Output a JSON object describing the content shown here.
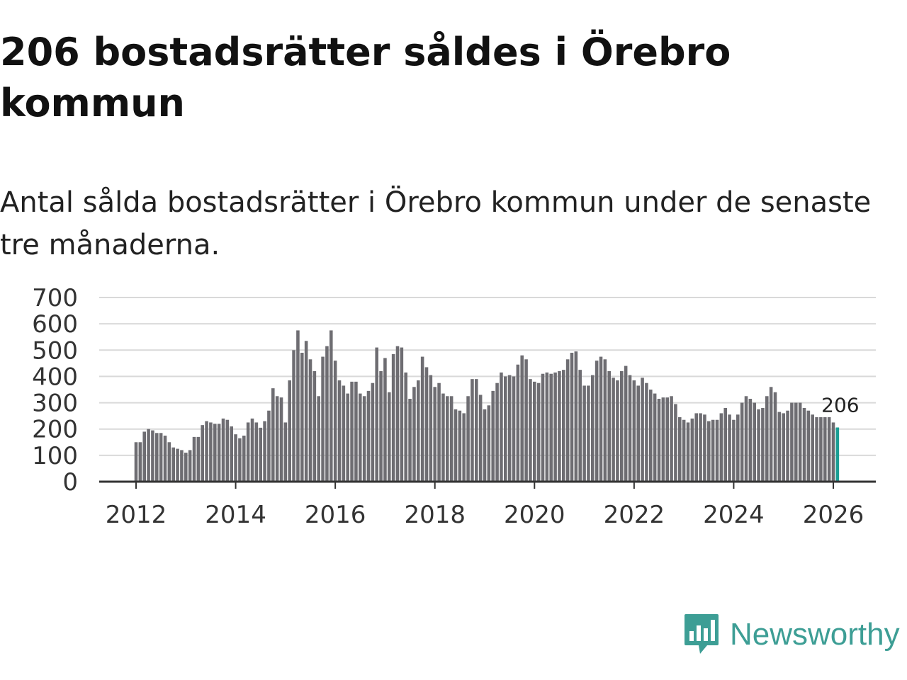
{
  "title": "206 bostadsrätter såldes i Örebro kommun",
  "subtitle": "Antal sålda bostadsrätter i Örebro kommun under de senaste tre månaderna.",
  "brand": {
    "name": "Newsworthy",
    "color": "#3d9e95"
  },
  "colors": {
    "bar": "#6e6d72",
    "highlight": "#1a9e94",
    "grid": "#d9d9d9",
    "axis": "#333333"
  },
  "chart_data": {
    "type": "bar",
    "x_start": "2012-01",
    "frequency": "monthly",
    "ylim": [
      0,
      700
    ],
    "yticks": [
      0,
      100,
      200,
      300,
      400,
      500,
      600,
      700
    ],
    "xticks": [
      "2012",
      "2014",
      "2016",
      "2018",
      "2020",
      "2022",
      "2024",
      "2026"
    ],
    "grid": true,
    "highlight_last": true,
    "last_label": "206",
    "values": [
      150,
      150,
      190,
      200,
      195,
      185,
      185,
      175,
      150,
      130,
      125,
      120,
      110,
      120,
      170,
      170,
      215,
      230,
      225,
      220,
      220,
      240,
      235,
      210,
      180,
      165,
      175,
      225,
      240,
      225,
      205,
      230,
      270,
      355,
      325,
      320,
      225,
      385,
      500,
      575,
      490,
      535,
      465,
      420,
      325,
      475,
      515,
      575,
      460,
      385,
      365,
      335,
      380,
      380,
      335,
      325,
      345,
      375,
      510,
      420,
      470,
      340,
      485,
      515,
      510,
      415,
      315,
      360,
      385,
      475,
      435,
      405,
      360,
      375,
      335,
      325,
      325,
      275,
      270,
      260,
      325,
      390,
      390,
      330,
      275,
      290,
      345,
      375,
      415,
      400,
      405,
      400,
      445,
      480,
      465,
      390,
      380,
      375,
      410,
      415,
      410,
      415,
      420,
      425,
      465,
      490,
      495,
      425,
      365,
      365,
      405,
      460,
      475,
      465,
      420,
      395,
      385,
      420,
      440,
      405,
      385,
      365,
      395,
      375,
      350,
      335,
      315,
      320,
      320,
      325,
      295,
      245,
      235,
      225,
      240,
      260,
      260,
      255,
      230,
      235,
      235,
      260,
      280,
      255,
      235,
      255,
      300,
      325,
      315,
      300,
      275,
      280,
      325,
      360,
      340,
      265,
      260,
      270,
      300,
      300,
      300,
      280,
      270,
      255,
      245,
      245,
      245,
      245,
      225,
      206
    ]
  }
}
